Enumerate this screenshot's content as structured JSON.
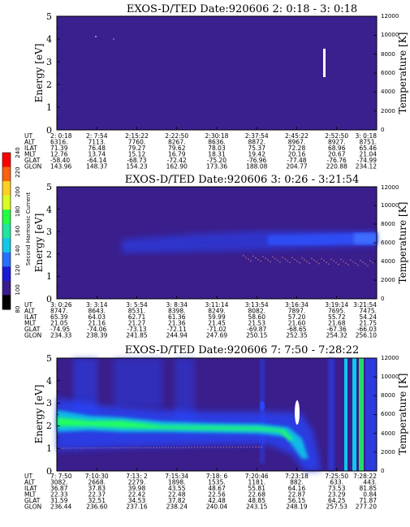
{
  "colors": {
    "background": "#3a1e8c",
    "band_blue": "#2846ff",
    "band_cyan": "#10c8e8",
    "band_green": "#20ff60",
    "streak_white": "#ffffff",
    "dotted_line": "#d08090"
  },
  "colorbar": {
    "title": "Second Harmonic Current",
    "ticks": [
      "80",
      "100",
      "120",
      "140",
      "160",
      "180",
      "200",
      "220",
      "240"
    ],
    "colors": [
      "#000000",
      "#3a1e8c",
      "#1a1ad8",
      "#2870ff",
      "#10c8e8",
      "#20e8a0",
      "#20ff40",
      "#d8ff20",
      "#ffd020",
      "#ff6010",
      "#ff0000"
    ]
  },
  "row_labels": [
    "UT",
    "ALT",
    "ILAT",
    "MLT",
    "GLAT",
    "GLON"
  ],
  "chart_data": [
    {
      "type": "heatmap",
      "title": "EXOS-D/TED   Date:920606  2: 0:18 - 3: 0:18",
      "ylabel": "Energy [eV]",
      "y2label": "Temperature [K]",
      "ylim": [
        0,
        5
      ],
      "y_ticks": [
        "0",
        "1",
        "2",
        "3",
        "4",
        "5"
      ],
      "y2lim": [
        0,
        12000
      ],
      "y2_ticks": [
        "0",
        "2000",
        "4000",
        "6000",
        "8000",
        "10000",
        "12000"
      ],
      "columns": [
        [
          "2: 0:18",
          "6316.",
          "71.39",
          "12.76",
          "-58.40",
          "143.96"
        ],
        [
          "2: 7:54",
          "7113.",
          "76.48",
          "13.74",
          "-64.14",
          "148.37"
        ],
        [
          "2:15:22",
          "7760.",
          "79.27",
          "15.12",
          "-68.73",
          "154.23"
        ],
        [
          "2:22:50",
          "8267.",
          "79.62",
          "16.79",
          "-72.42",
          "162.90"
        ],
        [
          "2:30:18",
          "8636.",
          "78.03",
          "18.31",
          "-75.20",
          "173.36"
        ],
        [
          "2:37:54",
          "8872.",
          "75.37",
          "19.42",
          "-76.96",
          "188.08"
        ],
        [
          "2:45:22",
          "8967.",
          "72.28",
          "20.16",
          "-77.48",
          "204.77"
        ],
        [
          "2:52:50",
          "8927.",
          "68.96",
          "20.67",
          "-76.76",
          "220.88"
        ],
        [
          "3: 0:18",
          "8751.",
          "65.46",
          "21.04",
          "-74.99",
          "234.12"
        ]
      ]
    },
    {
      "type": "heatmap",
      "title": "EXOS-D/TED   Date:920606  3: 0:26 - 3:21:54",
      "ylabel": "Energy [eV]",
      "y2label": "Temperature [K]",
      "ylim": [
        0,
        5
      ],
      "y_ticks": [
        "0",
        "1",
        "2",
        "3",
        "4",
        "5"
      ],
      "y2lim": [
        0,
        12000
      ],
      "y2_ticks": [
        "0",
        "2000",
        "4000",
        "6000",
        "8000",
        "10000",
        "12000"
      ],
      "columns": [
        [
          "3: 0:26",
          "8747.",
          "65.39",
          "21.05",
          "-74.95",
          "234.33"
        ],
        [
          "3: 3:14",
          "8643.",
          "64.03",
          "21.16",
          "-74.06",
          "238.39"
        ],
        [
          "3: 5:54",
          "8531.",
          "62.71",
          "21.27",
          "-73.13",
          "241.85"
        ],
        [
          "3: 8:34",
          "8398.",
          "61.36",
          "21.36",
          "-72.11",
          "244.94"
        ],
        [
          "3:11:14",
          "8249.",
          "59.99",
          "21.45",
          "-71.02",
          "247.69"
        ],
        [
          "3:13:54",
          "8082.",
          "58.60",
          "21.53",
          "-69.87",
          "250.15"
        ],
        [
          "3:16:34",
          "7897.",
          "57.20",
          "21.60",
          "-68.65",
          "252.35"
        ],
        [
          "3:19:14",
          "7695.",
          "55.72",
          "21.68",
          "-67.36",
          "254.32"
        ],
        [
          "3:21:54",
          "7475.",
          "54.24",
          "21.75",
          "-66.03",
          "256.10"
        ]
      ]
    },
    {
      "type": "heatmap",
      "title": "EXOS-D/TED   Date:920606  7: 7:50 - 7:28:22",
      "ylabel": "Energy [eV]",
      "y2label": "Temperature [K]",
      "ylim": [
        0,
        5
      ],
      "y_ticks": [
        "0",
        "1",
        "2",
        "3",
        "4",
        "5"
      ],
      "y2lim": [
        0,
        12000
      ],
      "y2_ticks": [
        "0",
        "2000",
        "4000",
        "6000",
        "8000",
        "10000",
        "12000"
      ],
      "columns": [
        [
          "7: 7:50",
          "3082.",
          "36.87",
          "22.33",
          "31.59",
          "236.44"
        ],
        [
          "7:10:30",
          "2668.",
          "37.83",
          "22.37",
          "32.51",
          "236.60"
        ],
        [
          "7:13: 2",
          "2279.",
          "39.98",
          "22.42",
          "34.53",
          "237.16"
        ],
        [
          "7:15:34",
          "1898.",
          "43.55",
          "22.48",
          "37.82",
          "238.24"
        ],
        [
          "7:18: 6",
          "1535.",
          "48.67",
          "22.56",
          "42.48",
          "240.04"
        ],
        [
          "7:20:46",
          "1181.",
          "55.81",
          "22.68",
          "48.85",
          "243.15"
        ],
        [
          "7:23:18",
          "882.",
          "64.16",
          "22.87",
          "56.15",
          "248.19"
        ],
        [
          "7:25:50",
          "633.",
          "73.53",
          "23.29",
          "64.25",
          "257.53"
        ],
        [
          "7:28:22",
          "443.",
          "81.85",
          "0.84",
          "71.87",
          "277.20"
        ]
      ]
    }
  ]
}
